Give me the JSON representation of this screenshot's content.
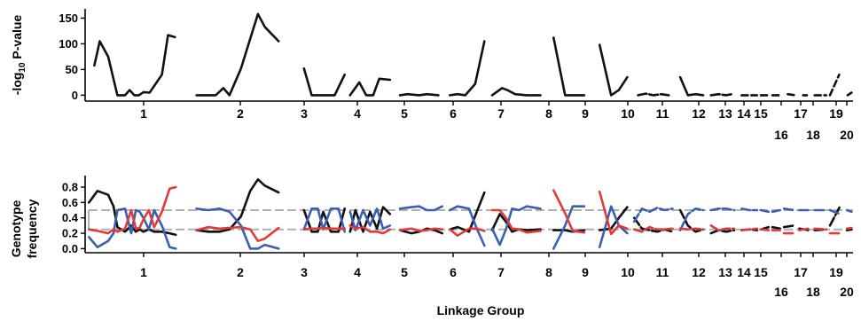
{
  "figure": {
    "xlabel": "Linkage Group"
  },
  "chart_data": [
    {
      "type": "line",
      "ylabel_prefix": "-log",
      "ylabel_sub": "10",
      "ylabel_suffix": " P-value",
      "yticks": [
        0,
        50,
        100,
        150
      ],
      "ylim": [
        -8,
        168
      ],
      "xlim": [
        0,
        100
      ],
      "color": "#111111",
      "groups": [
        {
          "label": "1",
          "x": [
            1.2,
            1.9,
            3.0,
            4.2,
            5.2,
            5.8,
            6.4,
            7.0,
            7.6,
            8.4,
            10.0,
            10.8,
            11.7
          ],
          "y": [
            58,
            105,
            75,
            0,
            0,
            10,
            0,
            0,
            6,
            5,
            40,
            117,
            113
          ]
        },
        {
          "label": "2",
          "x": [
            14.5,
            15.5,
            17.0,
            18.0,
            18.8,
            20.3,
            21.5,
            22.5,
            23.4,
            25.2
          ],
          "y": [
            0,
            0,
            0,
            14,
            0,
            52,
            110,
            158,
            133,
            105
          ]
        },
        {
          "label": "3",
          "x": [
            28.5,
            29.5,
            30.5,
            31.5,
            32.5,
            33.8
          ],
          "y": [
            52,
            0,
            0,
            0,
            0,
            40
          ]
        },
        {
          "label": "4",
          "x": [
            34.5,
            35.7,
            36.6,
            37.5,
            38.3,
            39.7
          ],
          "y": [
            0,
            25,
            0,
            0,
            32,
            30
          ]
        },
        {
          "label": "5",
          "x": [
            41.0,
            42.0,
            43.5,
            44.5,
            46.0
          ],
          "y": [
            0,
            2,
            0,
            2,
            0
          ]
        },
        {
          "label": "6",
          "x": [
            47.5,
            48.5,
            49.5,
            50.8,
            52.0
          ],
          "y": [
            0,
            2,
            0,
            22,
            105
          ]
        },
        {
          "label": "7",
          "x": [
            53.0,
            54.3,
            55.0,
            56.0,
            57.5,
            59.3
          ],
          "y": [
            0,
            14,
            10,
            2,
            0,
            0
          ]
        },
        {
          "label": "8",
          "x": [
            61.0,
            62.5,
            63.5,
            65.0
          ],
          "y": [
            112,
            0,
            0,
            0
          ]
        },
        {
          "label": "9",
          "x": [
            67.0,
            68.5,
            69.5,
            70.6
          ],
          "y": [
            98,
            0,
            10,
            35
          ]
        },
        {
          "label": "10",
          "x": [
            72.0,
            73.0,
            74.0,
            75.0,
            76.0
          ],
          "y": [
            0,
            3,
            0,
            2,
            0
          ]
        },
        {
          "label": "11",
          "x": [
            77.5,
            78.5,
            79.5,
            80.5
          ],
          "y": [
            35,
            0,
            2,
            0
          ]
        },
        {
          "label": "12",
          "x": [
            81.5,
            82.5,
            83.5,
            84.2
          ],
          "y": [
            0,
            2,
            0,
            2
          ]
        },
        {
          "label": "13",
          "x": [
            85.5,
            86.5,
            87.5
          ],
          "y": [
            0,
            0,
            0
          ]
        },
        {
          "label": "14",
          "x": [
            88.0,
            89.0
          ],
          "y": [
            0,
            0
          ]
        },
        {
          "label": "15",
          "x": [
            89.5,
            90.5
          ],
          "y": [
            0,
            0
          ]
        },
        {
          "label": "16",
          "x": [
            91.5,
            92.5
          ],
          "y": [
            2,
            0
          ]
        },
        {
          "label": "17",
          "x": [
            93.5,
            94.0
          ],
          "y": [
            0,
            0
          ]
        },
        {
          "label": "18",
          "x": [
            95.0,
            96.5
          ],
          "y": [
            0,
            0
          ]
        },
        {
          "label": "19",
          "x": [
            97.0,
            98.2
          ],
          "y": [
            0,
            40
          ]
        },
        {
          "label": "20",
          "x": [
            99.3,
            99.8
          ],
          "y": [
            0,
            5
          ]
        }
      ]
    },
    {
      "type": "line",
      "ylabel_line1": "Genotype",
      "ylabel_line2": "frequency",
      "yticks": [
        "0.0",
        "0.2",
        "0.4",
        "0.6",
        "0.8"
      ],
      "ylim": [
        -0.03,
        0.95
      ],
      "xlim": [
        0,
        100
      ],
      "reference_lines": [
        0.25,
        0.5
      ],
      "reference_color": "#b0b0b0",
      "series_colors": {
        "black": "#111111",
        "blue": "#3a5fb0",
        "red": "#e03a3a"
      },
      "groups": [
        {
          "label": "1",
          "x": [
            0.5,
            1.6,
            3.0,
            3.7,
            4.2,
            5.2,
            6.0,
            6.6,
            7.1,
            7.6,
            8.3,
            9.0,
            10.0,
            11.0,
            11.8
          ],
          "black": [
            0.6,
            0.75,
            0.7,
            0.55,
            0.28,
            0.22,
            0.3,
            0.22,
            0.25,
            0.22,
            0.25,
            0.22,
            0.22,
            0.2,
            0.18
          ],
          "blue": [
            0.15,
            0.02,
            0.1,
            0.2,
            0.5,
            0.52,
            0.2,
            0.5,
            0.48,
            0.4,
            0.25,
            0.5,
            0.3,
            0.02,
            0.0
          ],
          "red": [
            0.25,
            0.23,
            0.2,
            0.25,
            0.22,
            0.26,
            0.5,
            0.26,
            0.27,
            0.38,
            0.5,
            0.28,
            0.48,
            0.78,
            0.8
          ]
        },
        {
          "label": "2",
          "x": [
            14.5,
            16.0,
            17.5,
            18.8,
            20.3,
            21.5,
            22.5,
            23.4,
            25.2
          ],
          "black": [
            0.24,
            0.22,
            0.22,
            0.25,
            0.42,
            0.75,
            0.9,
            0.82,
            0.73
          ],
          "blue": [
            0.52,
            0.5,
            0.52,
            0.48,
            0.3,
            0.0,
            0.0,
            0.05,
            0.0
          ],
          "red": [
            0.24,
            0.28,
            0.26,
            0.27,
            0.28,
            0.25,
            0.1,
            0.13,
            0.27
          ]
        },
        {
          "label": "3",
          "x": [
            28.5,
            29.5,
            30.3,
            31.0,
            32.0,
            33.0,
            33.8
          ],
          "black": [
            0.5,
            0.22,
            0.22,
            0.48,
            0.22,
            0.22,
            0.52
          ],
          "blue": [
            0.25,
            0.52,
            0.52,
            0.25,
            0.52,
            0.52,
            0.22
          ],
          "red": [
            0.25,
            0.26,
            0.26,
            0.27,
            0.26,
            0.26,
            0.26
          ]
        },
        {
          "label": "4",
          "x": [
            34.5,
            35.2,
            36.2,
            37.1,
            38.0,
            38.8,
            39.7
          ],
          "black": [
            0.22,
            0.5,
            0.22,
            0.48,
            0.26,
            0.54,
            0.45
          ],
          "blue": [
            0.48,
            0.24,
            0.5,
            0.3,
            0.52,
            0.26,
            0.3
          ],
          "red": [
            0.3,
            0.26,
            0.28,
            0.22,
            0.22,
            0.2,
            0.25
          ]
        },
        {
          "label": "5",
          "x": [
            41.0,
            42.5,
            43.5,
            44.5,
            45.5,
            46.5
          ],
          "black": [
            0.24,
            0.2,
            0.22,
            0.26,
            0.24,
            0.2
          ],
          "blue": [
            0.52,
            0.54,
            0.55,
            0.5,
            0.5,
            0.55
          ],
          "red": [
            0.24,
            0.26,
            0.23,
            0.24,
            0.26,
            0.25
          ]
        },
        {
          "label": "6",
          "x": [
            47.5,
            48.5,
            50.0,
            51.0,
            52.0
          ],
          "black": [
            0.25,
            0.28,
            0.22,
            0.48,
            0.73
          ],
          "blue": [
            0.5,
            0.55,
            0.52,
            0.26,
            0.04
          ],
          "red": [
            0.25,
            0.17,
            0.26,
            0.26,
            0.23
          ]
        },
        {
          "label": "7",
          "x": [
            53.0,
            54.0,
            54.8,
            55.6,
            56.5,
            57.5,
            59.3
          ],
          "black": [
            0.24,
            0.45,
            0.35,
            0.22,
            0.25,
            0.24,
            0.25
          ],
          "blue": [
            0.26,
            0.05,
            0.25,
            0.52,
            0.5,
            0.55,
            0.52
          ],
          "red": [
            0.5,
            0.5,
            0.4,
            0.26,
            0.25,
            0.21,
            0.23
          ]
        },
        {
          "label": "8",
          "x": [
            61.0,
            62.5,
            63.5,
            65.0
          ],
          "black": [
            0.24,
            0.24,
            0.22,
            0.24
          ],
          "blue": [
            0.0,
            0.3,
            0.55,
            0.55
          ],
          "red": [
            0.76,
            0.46,
            0.23,
            0.21
          ]
        },
        {
          "label": "9",
          "x": [
            67.0,
            68.5,
            69.5,
            70.6
          ],
          "black": [
            0.24,
            0.26,
            0.4,
            0.54
          ],
          "blue": [
            0.02,
            0.55,
            0.3,
            0.2
          ],
          "red": [
            0.74,
            0.19,
            0.3,
            0.26
          ]
        },
        {
          "label": "10",
          "x": [
            71.5,
            72.5,
            73.5,
            74.5,
            75.5,
            76.5
          ],
          "black": [
            0.4,
            0.26,
            0.24,
            0.22,
            0.25,
            0.22
          ],
          "blue": [
            0.35,
            0.52,
            0.48,
            0.53,
            0.5,
            0.52
          ],
          "red": [
            0.25,
            0.22,
            0.28,
            0.25,
            0.25,
            0.26
          ]
        },
        {
          "label": "11",
          "x": [
            77.5,
            78.5,
            79.5,
            80.5
          ],
          "black": [
            0.5,
            0.3,
            0.22,
            0.25
          ],
          "blue": [
            0.24,
            0.45,
            0.52,
            0.5
          ],
          "red": [
            0.26,
            0.25,
            0.26,
            0.25
          ]
        },
        {
          "label": "12",
          "x": [
            81.5,
            82.5,
            83.5,
            84.5
          ],
          "black": [
            0.2,
            0.24,
            0.22,
            0.24
          ],
          "blue": [
            0.5,
            0.52,
            0.52,
            0.5
          ],
          "red": [
            0.3,
            0.24,
            0.26,
            0.26
          ]
        },
        {
          "label": "13",
          "x": [
            85.5,
            86.5,
            87.5
          ],
          "black": [
            0.24,
            0.25,
            0.24
          ],
          "blue": [
            0.52,
            0.5,
            0.5
          ],
          "red": [
            0.24,
            0.25,
            0.26
          ]
        },
        {
          "label": "14",
          "x": [
            88.0,
            89.0
          ],
          "black": [
            0.25,
            0.28
          ],
          "blue": [
            0.5,
            0.48
          ],
          "red": [
            0.25,
            0.24
          ]
        },
        {
          "label": "15",
          "x": [
            89.5,
            90.5
          ],
          "black": [
            0.28,
            0.26
          ],
          "blue": [
            0.48,
            0.5
          ],
          "red": [
            0.24,
            0.24
          ]
        },
        {
          "label": "16",
          "x": [
            91.0,
            92.3
          ],
          "black": [
            0.28,
            0.3
          ],
          "blue": [
            0.52,
            0.5
          ],
          "red": [
            0.2,
            0.2
          ]
        },
        {
          "label": "17",
          "x": [
            93.0,
            94.2
          ],
          "black": [
            0.26,
            0.24
          ],
          "blue": [
            0.5,
            0.5
          ],
          "red": [
            0.24,
            0.26
          ]
        },
        {
          "label": "18",
          "x": [
            95.0,
            96.5
          ],
          "black": [
            0.24,
            0.25
          ],
          "blue": [
            0.5,
            0.5
          ],
          "red": [
            0.26,
            0.25
          ]
        },
        {
          "label": "19",
          "x": [
            97.0,
            98.3
          ],
          "black": [
            0.3,
            0.55
          ],
          "blue": [
            0.5,
            0.45
          ],
          "red": [
            0.2,
            0.2
          ]
        },
        {
          "label": "20",
          "x": [
            99.2,
            99.8
          ],
          "black": [
            0.24,
            0.25
          ],
          "blue": [
            0.5,
            0.48
          ],
          "red": [
            0.26,
            0.27
          ]
        }
      ]
    }
  ]
}
